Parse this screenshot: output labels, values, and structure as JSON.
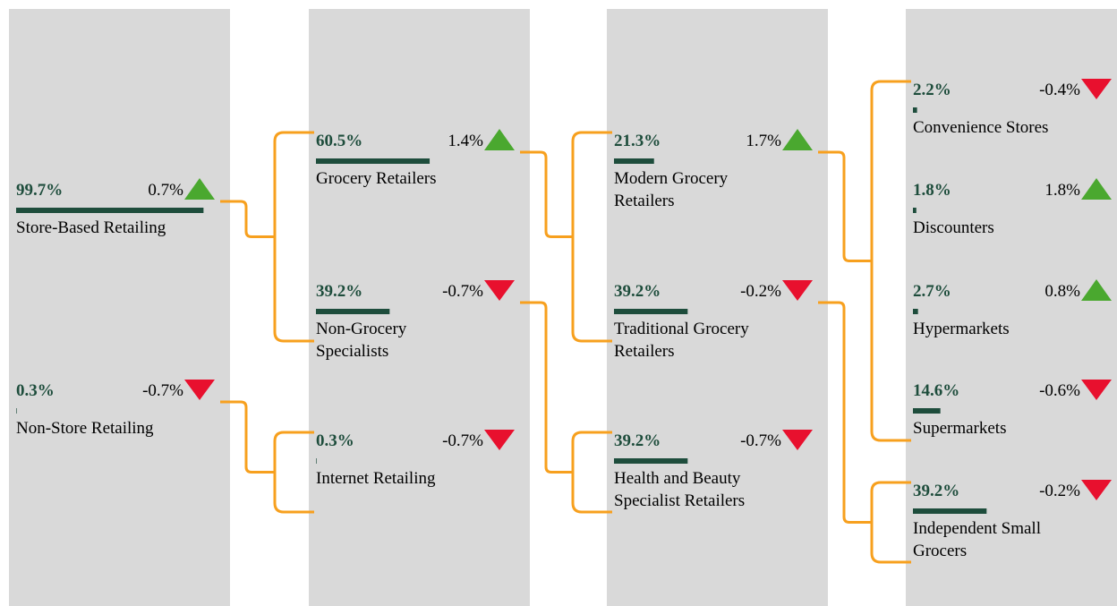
{
  "nodes": [
    {
      "label": "Store-Based Retailing",
      "share": 99.7,
      "share_label": "99.7%",
      "change": 0.7,
      "change_label": "0.7%",
      "children": [
        {
          "label": "Grocery Retailers",
          "share": 60.5,
          "share_label": "60.5%",
          "change": 1.4,
          "change_label": "1.4%",
          "children": [
            {
              "label": "Modern Grocery Retailers",
              "share": 21.3,
              "share_label": "21.3%",
              "change": 1.7,
              "change_label": "1.7%",
              "children": [
                {
                  "label": "Convenience Stores",
                  "share": 2.2,
                  "share_label": "2.2%",
                  "change": -0.4,
                  "change_label": "-0.4%"
                },
                {
                  "label": "Discounters",
                  "share": 1.8,
                  "share_label": "1.8%",
                  "change": 1.8,
                  "change_label": "1.8%"
                },
                {
                  "label": "Hypermarkets",
                  "share": 2.7,
                  "share_label": "2.7%",
                  "change": 0.8,
                  "change_label": "0.8%"
                },
                {
                  "label": "Supermarkets",
                  "share": 14.6,
                  "share_label": "14.6%",
                  "change": -0.6,
                  "change_label": "-0.6%"
                }
              ]
            },
            {
              "label": "Traditional Grocery Retailers",
              "share": 39.2,
              "share_label": "39.2%",
              "change": -0.2,
              "change_label": "-0.2%",
              "children": [
                {
                  "label": "Independent Small Grocers",
                  "share": 39.2,
                  "share_label": "39.2%",
                  "change": -0.2,
                  "change_label": "-0.2%"
                }
              ]
            }
          ]
        },
        {
          "label": "Non-Grocery Specialists",
          "share": 39.2,
          "share_label": "39.2%",
          "change": -0.7,
          "change_label": "-0.7%",
          "children": [
            {
              "label": "Health and Beauty Specialist Retailers",
              "share": 39.2,
              "share_label": "39.2%",
              "change": -0.7,
              "change_label": "-0.7%"
            }
          ]
        }
      ]
    },
    {
      "label": "Non-Store Retailing",
      "share": 0.3,
      "share_label": "0.3%",
      "change": -0.7,
      "change_label": "-0.7%",
      "children": [
        {
          "label": "Internet Retailing",
          "share": 0.3,
          "share_label": "0.3%",
          "change": -0.7,
          "change_label": "-0.7%"
        }
      ]
    }
  ]
}
